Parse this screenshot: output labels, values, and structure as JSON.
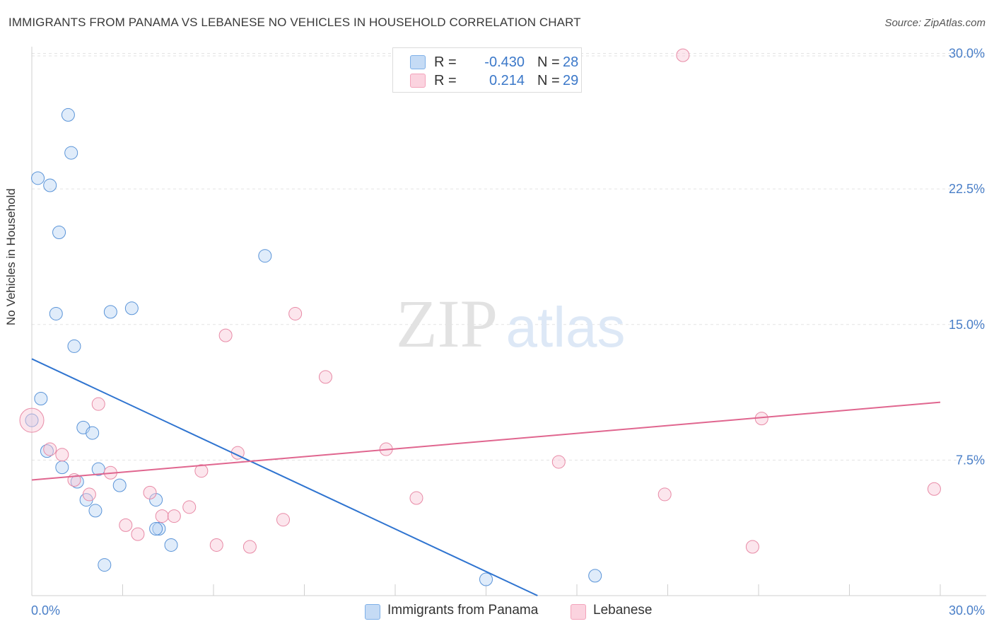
{
  "header": {
    "title": "IMMIGRANTS FROM PANAMA VS LEBANESE NO VEHICLES IN HOUSEHOLD CORRELATION CHART",
    "source": "Source: ZipAtlas.com"
  },
  "watermark": {
    "zip": "ZIP",
    "atlas": "atlas"
  },
  "legend": {
    "rows": [
      {
        "r_label": "R =",
        "r_value": "-0.430",
        "n_label": "N =",
        "n_value": "28",
        "color": "#7eb0e8"
      },
      {
        "r_label": "R =",
        "r_value": "0.214",
        "n_label": "N =",
        "n_value": "29",
        "color": "#f3a3bb"
      }
    ]
  },
  "chart_data": {
    "type": "scatter",
    "title": "IMMIGRANTS FROM PANAMA VS LEBANESE NO VEHICLES IN HOUSEHOLD CORRELATION CHART",
    "ylabel": "No Vehicles in Household",
    "xlabel": "",
    "xlim": [
      0,
      30
    ],
    "ylim": [
      0,
      31
    ],
    "x_tick_labels": [
      "0.0%",
      "30.0%"
    ],
    "y_ticks": [
      7.5,
      15.0,
      22.5,
      30.0
    ],
    "y_tick_labels": [
      "7.5%",
      "15.0%",
      "22.5%",
      "30.0%"
    ],
    "grid": "horizontal dashed",
    "legend_position": "bottom-center",
    "series": [
      {
        "name": "Immigrants from Panama",
        "color": "#7eb0e8",
        "stroke": "#5a94d8",
        "trend": {
          "x": [
            0,
            16.7
          ],
          "y": [
            13.1,
            0
          ]
        },
        "points": [
          [
            0.0,
            9.7,
            9
          ],
          [
            0.2,
            23.1,
            9
          ],
          [
            0.6,
            22.7,
            9
          ],
          [
            0.9,
            20.1,
            9
          ],
          [
            1.2,
            26.6,
            9
          ],
          [
            1.3,
            24.5,
            9
          ],
          [
            0.8,
            15.6,
            9
          ],
          [
            1.4,
            13.8,
            9
          ],
          [
            0.3,
            10.9,
            9
          ],
          [
            0.5,
            8.0,
            9
          ],
          [
            1.0,
            7.1,
            9
          ],
          [
            1.7,
            9.3,
            9
          ],
          [
            2.0,
            9.0,
            9
          ],
          [
            1.5,
            6.3,
            9
          ],
          [
            1.8,
            5.3,
            9
          ],
          [
            2.1,
            4.7,
            9
          ],
          [
            2.2,
            7.0,
            9
          ],
          [
            2.9,
            6.1,
            9
          ],
          [
            2.6,
            15.7,
            9
          ],
          [
            3.3,
            15.9,
            9
          ],
          [
            4.1,
            5.3,
            9
          ],
          [
            4.2,
            3.7,
            9
          ],
          [
            4.1,
            3.7,
            9
          ],
          [
            4.6,
            2.8,
            9
          ],
          [
            7.7,
            18.8,
            9
          ],
          [
            2.4,
            1.7,
            9
          ],
          [
            15.0,
            0.9,
            9
          ],
          [
            18.6,
            1.1,
            9
          ]
        ]
      },
      {
        "name": "Lebanese",
        "color": "#f3a3bb",
        "stroke": "#e88aa6",
        "trend": {
          "x": [
            0,
            30
          ],
          "y": [
            6.4,
            10.7
          ]
        },
        "points": [
          [
            0.0,
            9.7,
            17
          ],
          [
            0.6,
            8.1,
            9
          ],
          [
            1.0,
            7.8,
            9
          ],
          [
            1.4,
            6.4,
            9
          ],
          [
            1.9,
            5.6,
            9
          ],
          [
            2.2,
            10.6,
            9
          ],
          [
            2.6,
            6.8,
            9
          ],
          [
            3.1,
            3.9,
            9
          ],
          [
            3.5,
            3.4,
            9
          ],
          [
            3.9,
            5.7,
            9
          ],
          [
            4.3,
            4.4,
            9
          ],
          [
            4.7,
            4.4,
            9
          ],
          [
            5.2,
            4.9,
            9
          ],
          [
            5.6,
            6.9,
            9
          ],
          [
            6.1,
            2.8,
            9
          ],
          [
            6.4,
            14.4,
            9
          ],
          [
            6.8,
            7.9,
            9
          ],
          [
            7.2,
            2.7,
            9
          ],
          [
            8.3,
            4.2,
            9
          ],
          [
            8.7,
            15.6,
            9
          ],
          [
            9.7,
            12.1,
            9
          ],
          [
            11.7,
            8.1,
            9
          ],
          [
            12.7,
            5.4,
            9
          ],
          [
            17.4,
            7.4,
            9
          ],
          [
            21.5,
            29.9,
            9
          ],
          [
            20.9,
            5.6,
            9
          ],
          [
            23.8,
            2.7,
            9
          ],
          [
            24.1,
            9.8,
            9
          ],
          [
            29.8,
            5.9,
            9
          ]
        ]
      }
    ]
  }
}
